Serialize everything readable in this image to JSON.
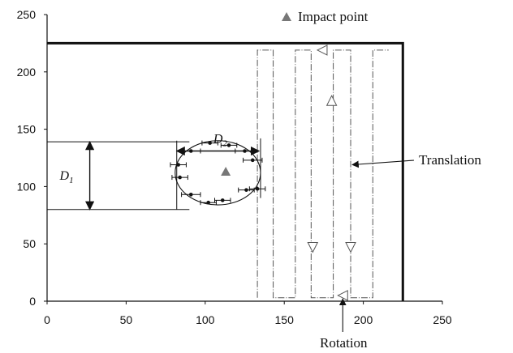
{
  "chart_data": {
    "type": "scatter",
    "xlim": [
      0,
      250
    ],
    "ylim": [
      0,
      250
    ],
    "xticks": [
      0,
      50,
      100,
      150,
      200,
      250
    ],
    "yticks": [
      0,
      50,
      100,
      150,
      200,
      250
    ],
    "grid": false,
    "legend": {
      "label": "Impact point",
      "placement": "top"
    },
    "impact_point": {
      "x": 113,
      "y": 113
    },
    "measured_points": [
      {
        "x": 83,
        "y": 119,
        "xerr": 5
      },
      {
        "x": 84,
        "y": 108,
        "xerr": 5
      },
      {
        "x": 91,
        "y": 131,
        "xerr": 6
      },
      {
        "x": 91,
        "y": 93,
        "xerr": 6
      },
      {
        "x": 103,
        "y": 138,
        "xerr": 5
      },
      {
        "x": 102,
        "y": 86,
        "xerr": 5
      },
      {
        "x": 115,
        "y": 136,
        "xerr": 5
      },
      {
        "x": 111,
        "y": 88,
        "xerr": 5
      },
      {
        "x": 125,
        "y": 131,
        "xerr": 6
      },
      {
        "x": 130,
        "y": 123,
        "xerr": 6
      },
      {
        "x": 126,
        "y": 97,
        "xerr": 5
      },
      {
        "x": 133,
        "y": 98,
        "xerr": 5
      }
    ],
    "fitted_ellipse": {
      "cx": 108,
      "cy": 112,
      "rx": 27,
      "ry": 28
    },
    "boundary": [
      [
        0,
        225
      ],
      [
        225,
        225
      ],
      [
        225,
        0
      ]
    ],
    "scan_path": [
      [
        133,
        3
      ],
      [
        133,
        219
      ],
      [
        143,
        219
      ],
      [
        143,
        3
      ],
      [
        157,
        3
      ],
      [
        157,
        219
      ],
      [
        167,
        219
      ],
      [
        167,
        3
      ],
      [
        181,
        3
      ],
      [
        181,
        219
      ],
      [
        192,
        219
      ],
      [
        192,
        3
      ],
      [
        206,
        3
      ],
      [
        206,
        219
      ],
      [
        216,
        219
      ]
    ],
    "scan_arrows": [
      {
        "x": 174,
        "y": 219,
        "dir": "left"
      },
      {
        "x": 180,
        "y": 175,
        "dir": "up"
      },
      {
        "x": 168,
        "y": 47,
        "dir": "down"
      },
      {
        "x": 192,
        "y": 47,
        "dir": "down"
      },
      {
        "x": 187,
        "y": 5,
        "dir": "left"
      }
    ],
    "guide_lines": [
      {
        "points": [
          [
            0,
            139
          ],
          [
            90,
            139
          ]
        ]
      },
      {
        "points": [
          [
            0,
            80
          ],
          [
            90,
            80
          ]
        ]
      },
      {
        "points": [
          [
            82,
            140
          ],
          [
            82,
            80
          ]
        ]
      },
      {
        "points": [
          [
            135,
            142
          ],
          [
            135,
            90
          ]
        ]
      }
    ],
    "dimensions": [
      {
        "label": "D2",
        "from": [
          82,
          131
        ],
        "to": [
          134,
          131
        ]
      },
      {
        "label": "D1",
        "from": [
          27,
          139
        ],
        "to": [
          27,
          80
        ]
      }
    ],
    "annotations": [
      {
        "text": "Translation",
        "arrow_to": [
          193,
          119
        ]
      },
      {
        "text": "Rotation",
        "arrow_to": [
          187,
          2
        ]
      }
    ]
  }
}
